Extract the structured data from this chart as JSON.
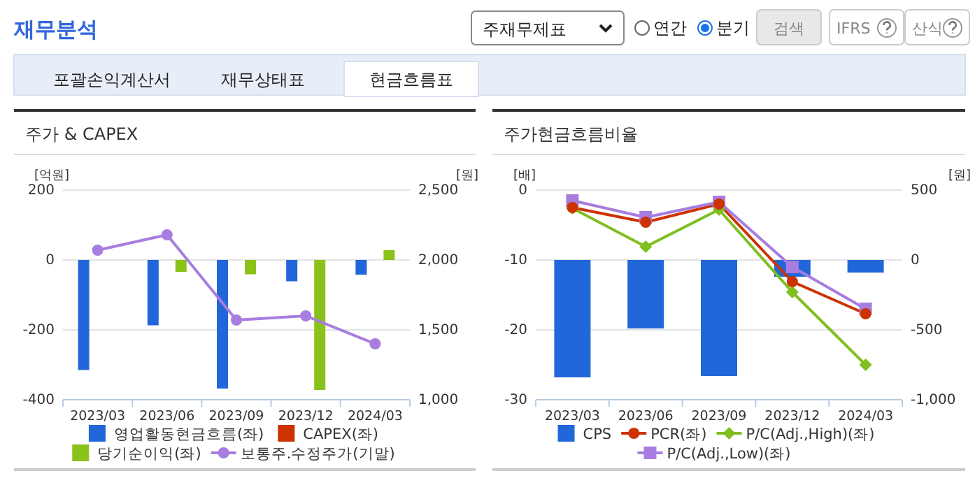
{
  "chart_data": [
    {
      "type": "other",
      "title": "재무분석",
      "annotations": [
        "주재무제표",
        "연간",
        "분기",
        "검색",
        "IFRS",
        "산식",
        "포괄손익계산서",
        "재무상태표",
        "현금흐름표"
      ]
    },
    {
      "type": "bar",
      "title": "주가 & CAPEX",
      "ylabel": "[억원]",
      "y2label": "[원]",
      "categories": [
        "2023/03",
        "2023/06",
        "2023/09",
        "2023/12",
        "2024/03"
      ],
      "series": [
        {
          "name": "영업활동현금흐름(좌)",
          "type": "bar",
          "color": "#2167d9",
          "values": [
            -315,
            -187,
            -368,
            -61,
            -42
          ]
        },
        {
          "name": "CAPEX(좌)",
          "type": "bar",
          "color": "#cc3300",
          "values": [
            null,
            null,
            null,
            null,
            null
          ]
        },
        {
          "name": "당기순이익(좌)",
          "type": "bar",
          "color": "#8bc21a",
          "values": [
            null,
            -34,
            -41,
            -372,
            28
          ]
        },
        {
          "name": "보통주.수정주가(기말)",
          "type": "line",
          "axis": "y2",
          "marker": "circle",
          "color": "#a77de0",
          "values": [
            2070,
            2180,
            1570,
            1600,
            1400
          ]
        }
      ],
      "ylim": [
        -400,
        200
      ],
      "yticks": [
        -400,
        -200,
        0,
        200
      ],
      "y2lim": [
        1000,
        2500
      ],
      "y2ticks": [
        {
          "value": 1000,
          "label": "1,000"
        },
        {
          "value": 1500,
          "label": "1,500"
        },
        {
          "value": 2000,
          "label": "2,000"
        },
        {
          "value": 2500,
          "label": "2,500"
        }
      ],
      "grid": "y",
      "legend": "bottom"
    },
    {
      "type": "bar",
      "title": "주가현금흐름비율",
      "ylabel": "[배]",
      "y2label": "[원]",
      "categories": [
        "2023/03",
        "2023/06",
        "2023/09",
        "2023/12",
        "2024/03"
      ],
      "series": [
        {
          "name": "CPS",
          "type": "bar",
          "axis": "y2",
          "color": "#2167d9",
          "values": [
            -840,
            -490,
            -830,
            -120,
            -90
          ]
        },
        {
          "name": "PCR(좌)",
          "type": "line",
          "marker": "circle",
          "color": "#cc3300",
          "values": [
            -2.5,
            -4.6,
            -2.0,
            -13.1,
            -17.7
          ]
        },
        {
          "name": "P/C(Adj.,High)(좌)",
          "type": "line",
          "marker": "diamond",
          "color": "#7fbf1f",
          "values": [
            -2.6,
            -8.1,
            -2.8,
            -14.6,
            -25.0
          ]
        },
        {
          "name": "P/C(Adj.,Low)(좌)",
          "type": "line",
          "marker": "square",
          "color": "#a77de0",
          "values": [
            -1.5,
            -3.9,
            -1.7,
            -11.0,
            -17.0
          ]
        }
      ],
      "ylim": [
        -30,
        0
      ],
      "yticks": [
        -30,
        -20,
        -10,
        0
      ],
      "y2lim": [
        -1000,
        500
      ],
      "y2ticks": [
        {
          "value": -1000,
          "label": "-1,000"
        },
        {
          "value": -500,
          "label": "-500"
        },
        {
          "value": 0,
          "label": "0"
        },
        {
          "value": 500,
          "label": "500"
        }
      ],
      "grid": "y",
      "legend": "bottom"
    }
  ]
}
